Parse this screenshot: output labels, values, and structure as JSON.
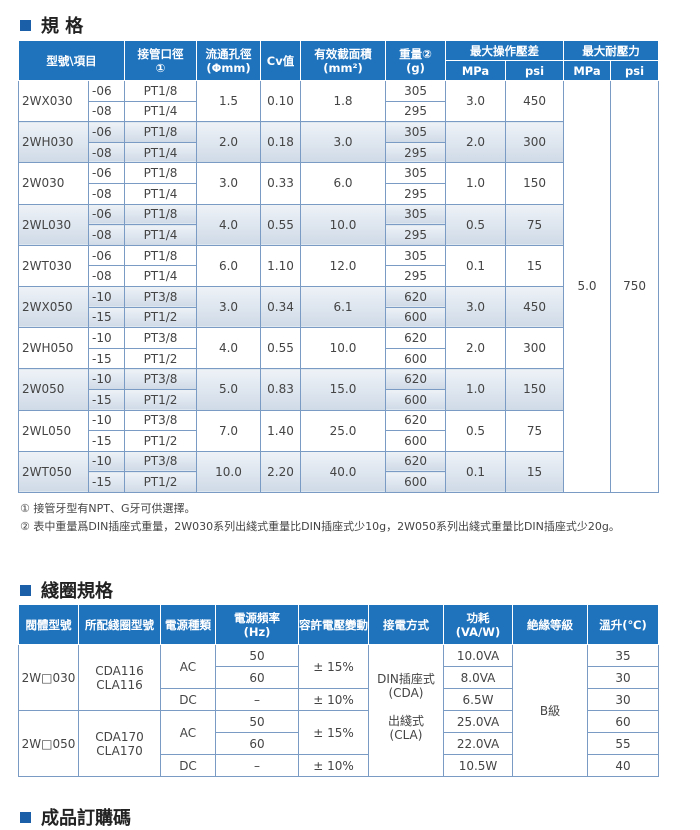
{
  "spec": {
    "title": "規 格",
    "header": {
      "item": "型號\\項目",
      "port": "接管口徑\n①",
      "orifice": "流通孔徑\n(Φmm)",
      "cv": "Cv值",
      "area": "有效截面積\n(mm²)",
      "weight": "重量②\n(g)",
      "op": "最大操作壓差",
      "max": "最大耐壓力",
      "op_mpa": "MPa",
      "op_psi": "psi",
      "max_mpa": "MPa",
      "max_psi": "psi"
    },
    "rows": [
      {
        "model": "2WX030",
        "ports": [
          {
            "code": "-06",
            "port": "PT1/8",
            "weight": "305"
          },
          {
            "code": "-08",
            "port": "PT1/4",
            "weight": "295"
          }
        ],
        "orifice": "1.5",
        "cv": "0.10",
        "area": "1.8",
        "op_mpa": "3.0",
        "op_psi": "450"
      },
      {
        "model": "2WH030",
        "ports": [
          {
            "code": "-06",
            "port": "PT1/8",
            "weight": "305"
          },
          {
            "code": "-08",
            "port": "PT1/4",
            "weight": "295"
          }
        ],
        "orifice": "2.0",
        "cv": "0.18",
        "area": "3.0",
        "op_mpa": "2.0",
        "op_psi": "300"
      },
      {
        "model": "2W030",
        "ports": [
          {
            "code": "-06",
            "port": "PT1/8",
            "weight": "305"
          },
          {
            "code": "-08",
            "port": "PT1/4",
            "weight": "295"
          }
        ],
        "orifice": "3.0",
        "cv": "0.33",
        "area": "6.0",
        "op_mpa": "1.0",
        "op_psi": "150"
      },
      {
        "model": "2WL030",
        "ports": [
          {
            "code": "-06",
            "port": "PT1/8",
            "weight": "305"
          },
          {
            "code": "-08",
            "port": "PT1/4",
            "weight": "295"
          }
        ],
        "orifice": "4.0",
        "cv": "0.55",
        "area": "10.0",
        "op_mpa": "0.5",
        "op_psi": "75"
      },
      {
        "model": "2WT030",
        "ports": [
          {
            "code": "-06",
            "port": "PT1/8",
            "weight": "305"
          },
          {
            "code": "-08",
            "port": "PT1/4",
            "weight": "295"
          }
        ],
        "orifice": "6.0",
        "cv": "1.10",
        "area": "12.0",
        "op_mpa": "0.1",
        "op_psi": "15"
      },
      {
        "model": "2WX050",
        "ports": [
          {
            "code": "-10",
            "port": "PT3/8",
            "weight": "620"
          },
          {
            "code": "-15",
            "port": "PT1/2",
            "weight": "600"
          }
        ],
        "orifice": "3.0",
        "cv": "0.34",
        "area": "6.1",
        "op_mpa": "3.0",
        "op_psi": "450"
      },
      {
        "model": "2WH050",
        "ports": [
          {
            "code": "-10",
            "port": "PT3/8",
            "weight": "620"
          },
          {
            "code": "-15",
            "port": "PT1/2",
            "weight": "600"
          }
        ],
        "orifice": "4.0",
        "cv": "0.55",
        "area": "10.0",
        "op_mpa": "2.0",
        "op_psi": "300"
      },
      {
        "model": "2W050",
        "ports": [
          {
            "code": "-10",
            "port": "PT3/8",
            "weight": "620"
          },
          {
            "code": "-15",
            "port": "PT1/2",
            "weight": "600"
          }
        ],
        "orifice": "5.0",
        "cv": "0.83",
        "area": "15.0",
        "op_mpa": "1.0",
        "op_psi": "150"
      },
      {
        "model": "2WL050",
        "ports": [
          {
            "code": "-10",
            "port": "PT3/8",
            "weight": "620"
          },
          {
            "code": "-15",
            "port": "PT1/2",
            "weight": "600"
          }
        ],
        "orifice": "7.0",
        "cv": "1.40",
        "area": "25.0",
        "op_mpa": "0.5",
        "op_psi": "75"
      },
      {
        "model": "2WT050",
        "ports": [
          {
            "code": "-10",
            "port": "PT3/8",
            "weight": "620"
          },
          {
            "code": "-15",
            "port": "PT1/2",
            "weight": "600"
          }
        ],
        "orifice": "10.0",
        "cv": "2.20",
        "area": "40.0",
        "op_mpa": "0.1",
        "op_psi": "15"
      }
    ],
    "max_mpa": "5.0",
    "max_psi": "750",
    "notes": [
      "① 接管牙型有NPT、G牙可供選擇。",
      "② 表中重量爲DIN插座式重量，2W030系列出綫式重量比DIN插座式少10g，2W050系列出綫式重量比DIN插座式少20g。"
    ]
  },
  "coil": {
    "title": "綫圈規格",
    "header": [
      "閥體型號",
      "所配綫圈型號",
      "電源種類",
      "電源頻率\n(Hz)",
      "容許電壓變動",
      "接電方式",
      "功耗\n(VA/W)",
      "絶緣等級",
      "溫升(℃)"
    ],
    "connection": [
      "DIN插座式\n(CDA)",
      "出綫式\n(CLA)"
    ],
    "insulation": "B級",
    "groups": [
      {
        "body": "2W□030",
        "coil": "CDA116\nCLA116",
        "ac": {
          "supply": "AC",
          "tolerance": "± 15%",
          "rows": [
            {
              "freq": "50",
              "power": "10.0VA",
              "temp": "35"
            },
            {
              "freq": "60",
              "power": "8.0VA",
              "temp": "30"
            }
          ]
        },
        "dc": {
          "supply": "DC",
          "freq": "–",
          "tolerance": "± 10%",
          "power": "6.5W",
          "temp": "30"
        }
      },
      {
        "body": "2W□050",
        "coil": "CDA170\nCLA170",
        "ac": {
          "supply": "AC",
          "tolerance": "± 15%",
          "rows": [
            {
              "freq": "50",
              "power": "25.0VA",
              "temp": "60"
            },
            {
              "freq": "60",
              "power": "22.0VA",
              "temp": "55"
            }
          ]
        },
        "dc": {
          "supply": "DC",
          "freq": "–",
          "tolerance": "± 10%",
          "power": "10.5W",
          "temp": "40"
        }
      }
    ]
  },
  "order": {
    "title": "成品訂購碼"
  }
}
